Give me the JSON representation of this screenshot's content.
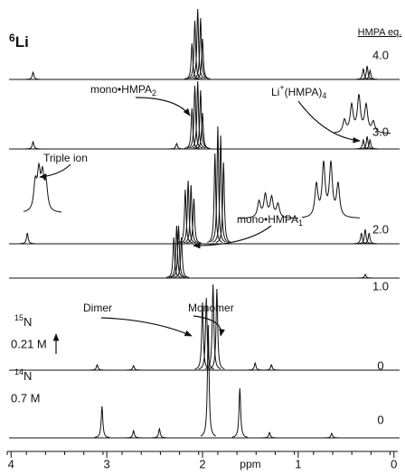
{
  "chart_data": {
    "type": "spectrum",
    "title": {
      "parts": [
        {
          "text": "6",
          "shift": "sup"
        },
        {
          "text": "Li",
          "shift": "base"
        }
      ]
    },
    "legend_title": "HMPA eq.",
    "xlabel": "ppm",
    "xlim": [
      4.04,
      -0.04
    ],
    "xticks": [
      4,
      3,
      2,
      1,
      0
    ],
    "series": [
      {
        "name": "4.0",
        "x": [
          3.77,
          2.11,
          2.08,
          2.05,
          2.02,
          2.0,
          0.32,
          0.28,
          0.25
        ],
        "values": [
          8,
          40,
          65,
          78,
          68,
          45,
          12,
          15,
          10
        ]
      },
      {
        "name": "3.0",
        "x": [
          3.77,
          2.27,
          2.11,
          2.08,
          2.05,
          2.02,
          2.0,
          0.32,
          0.28,
          0.25
        ],
        "values": [
          8,
          6,
          45,
          70,
          75,
          65,
          40,
          10,
          14,
          10
        ]
      },
      {
        "name": "2.0",
        "x": [
          3.83,
          2.18,
          2.15,
          2.12,
          2.09,
          1.87,
          1.84,
          1.81,
          1.78,
          0.34,
          0.3,
          0.26
        ],
        "values": [
          12,
          60,
          70,
          65,
          50,
          100,
          130,
          120,
          90,
          12,
          16,
          12
        ]
      },
      {
        "name": "1.0",
        "x": [
          2.3,
          2.27,
          2.25,
          2.22,
          0.3
        ],
        "values": [
          45,
          58,
          58,
          45,
          4
        ]
      },
      {
        "name": "0",
        "nucleus": {
          "parts": [
            {
              "text": "15",
              "shift": "sup"
            },
            {
              "text": "N",
              "shift": "base"
            }
          ]
        },
        "concentration": "0.21 M",
        "x": [
          3.1,
          2.72,
          2.0,
          1.96,
          1.89,
          1.85,
          1.45,
          1.28
        ],
        "values": [
          6,
          5,
          75,
          80,
          95,
          90,
          8,
          6
        ]
      },
      {
        "name": "0",
        "nucleus": {
          "parts": [
            {
              "text": "14",
              "shift": "sup"
            },
            {
              "text": "N",
              "shift": "base"
            }
          ]
        },
        "concentration": "0.7 M",
        "x": [
          3.05,
          2.72,
          2.45,
          1.94,
          1.61,
          1.3,
          0.65
        ],
        "values": [
          35,
          8,
          10,
          125,
          55,
          6,
          5
        ]
      }
    ],
    "annotations": [
      {
        "parts": [
          {
            "text": "mono•HMPA",
            "shift": "base"
          },
          {
            "text": "2",
            "shift": "sub"
          }
        ]
      },
      {
        "parts": [
          {
            "text": "Triple ion",
            "shift": "base"
          }
        ]
      },
      {
        "parts": [
          {
            "text": "Li",
            "shift": "base"
          },
          {
            "text": "+",
            "shift": "sup"
          },
          {
            "text": "(HMPA)",
            "shift": "base"
          },
          {
            "text": "4",
            "shift": "sub"
          }
        ]
      },
      {
        "parts": [
          {
            "text": "mono•HMPA",
            "shift": "base"
          },
          {
            "text": "1",
            "shift": "sub"
          }
        ]
      },
      {
        "parts": [
          {
            "text": "Dimer",
            "shift": "base"
          }
        ]
      },
      {
        "parts": [
          {
            "text": "Monomer",
            "shift": "base"
          }
        ]
      }
    ]
  }
}
